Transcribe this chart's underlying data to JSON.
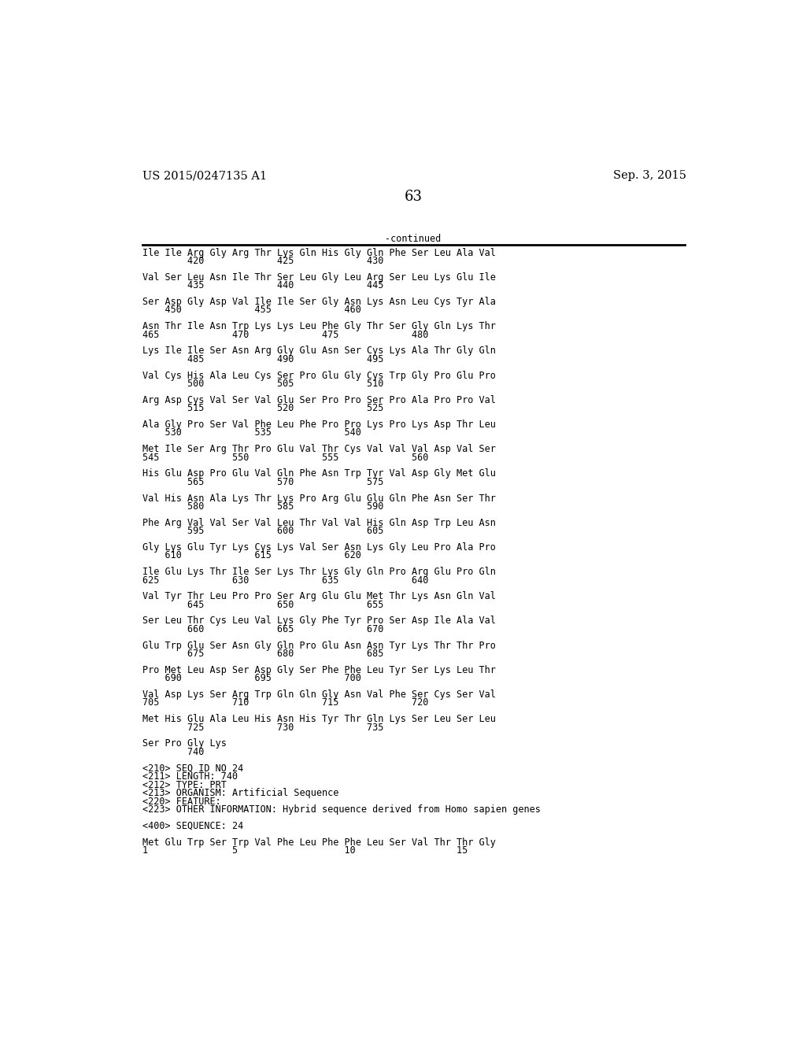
{
  "header_left": "US 2015/0247135 A1",
  "header_right": "Sep. 3, 2015",
  "page_number": "63",
  "continued_label": "-continued",
  "background_color": "#ffffff",
  "text_color": "#000000",
  "font_size": 8.5,
  "mono_font": "DejaVu Sans Mono",
  "header_font_size": 10.5,
  "page_num_font_size": 13,
  "sequence_lines": [
    "Ile Ile Arg Gly Arg Thr Lys Gln His Gly Gln Phe Ser Leu Ala Val",
    "        420             425             430",
    "",
    "Val Ser Leu Asn Ile Thr Ser Leu Gly Leu Arg Ser Leu Lys Glu Ile",
    "        435             440             445",
    "",
    "Ser Asp Gly Asp Val Ile Ile Ser Gly Asn Lys Asn Leu Cys Tyr Ala",
    "    450             455             460",
    "",
    "Asn Thr Ile Asn Trp Lys Lys Leu Phe Gly Thr Ser Gly Gln Lys Thr",
    "465             470             475             480",
    "",
    "Lys Ile Ile Ser Asn Arg Gly Glu Asn Ser Cys Lys Ala Thr Gly Gln",
    "        485             490             495",
    "",
    "Val Cys His Ala Leu Cys Ser Pro Glu Gly Cys Trp Gly Pro Glu Pro",
    "        500             505             510",
    "",
    "Arg Asp Cys Val Ser Val Glu Ser Pro Pro Ser Pro Ala Pro Pro Val",
    "        515             520             525",
    "",
    "Ala Gly Pro Ser Val Phe Leu Phe Pro Pro Lys Pro Lys Asp Thr Leu",
    "    530             535             540",
    "",
    "Met Ile Ser Arg Thr Pro Glu Val Thr Cys Val Val Val Asp Val Ser",
    "545             550             555             560",
    "",
    "His Glu Asp Pro Glu Val Gln Phe Asn Trp Tyr Val Asp Gly Met Glu",
    "        565             570             575",
    "",
    "Val His Asn Ala Lys Thr Lys Pro Arg Glu Glu Gln Phe Asn Ser Thr",
    "        580             585             590",
    "",
    "Phe Arg Val Val Ser Val Leu Thr Val Val His Gln Asp Trp Leu Asn",
    "        595             600             605",
    "",
    "Gly Lys Glu Tyr Lys Cys Lys Val Ser Asn Lys Gly Leu Pro Ala Pro",
    "    610             615             620",
    "",
    "Ile Glu Lys Thr Ile Ser Lys Thr Lys Gly Gln Pro Arg Glu Pro Gln",
    "625             630             635             640",
    "",
    "Val Tyr Thr Leu Pro Pro Ser Arg Glu Glu Met Thr Lys Asn Gln Val",
    "        645             650             655",
    "",
    "Ser Leu Thr Cys Leu Val Lys Gly Phe Tyr Pro Ser Asp Ile Ala Val",
    "        660             665             670",
    "",
    "Glu Trp Glu Ser Asn Gly Gln Pro Glu Asn Asn Tyr Lys Thr Thr Pro",
    "        675             680             685",
    "",
    "Pro Met Leu Asp Ser Asp Gly Ser Phe Phe Leu Tyr Ser Lys Leu Thr",
    "    690             695             700",
    "",
    "Val Asp Lys Ser Arg Trp Gln Gln Gly Asn Val Phe Ser Cys Ser Val",
    "705             710             715             720",
    "",
    "Met His Glu Ala Leu His Asn His Tyr Thr Gln Lys Ser Leu Ser Leu",
    "        725             730             735",
    "",
    "Ser Pro Gly Lys",
    "        740"
  ],
  "metadata_lines": [
    "<210> SEQ ID NO 24",
    "<211> LENGTH: 740",
    "<212> TYPE: PRT",
    "<213> ORGANISM: Artificial Sequence",
    "<220> FEATURE:",
    "<223> OTHER INFORMATION: Hybrid sequence derived from Homo sapien genes"
  ],
  "sequence_header": "<400> SEQUENCE: 24",
  "last_sequence_line1": "Met Glu Trp Ser Trp Val Phe Leu Phe Phe Leu Ser Val Thr Thr Gly",
  "last_sequence_line2": "1               5                   10                  15"
}
